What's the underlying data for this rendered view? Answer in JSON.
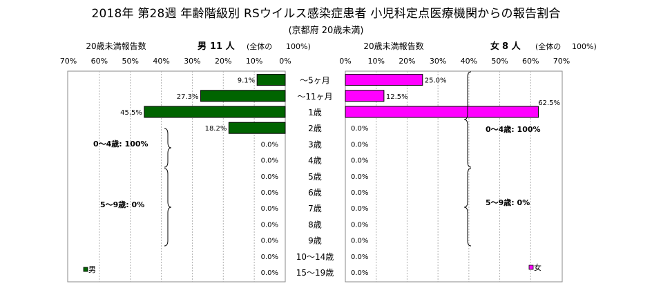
{
  "title": "2018年 第28週 年齢階級別 RSウイルス感染症患者 小児科定点医療機関からの報告割合",
  "subtitle": "(京都府 20歳未満)",
  "colors": {
    "male": "#006400",
    "female": "#ff00ff",
    "border": "#000000",
    "grid": "#b0b0b0"
  },
  "chart_data": [
    {
      "type": "bar",
      "orientation": "horizontal",
      "direction": "right-to-left",
      "header_left": "20歳未満報告数",
      "header_gender": "男",
      "header_count": "11 人",
      "header_total": "(全体の",
      "header_total_pct": "100%)",
      "legend": "男",
      "xlim": [
        0,
        70
      ],
      "ticks": [
        "0%",
        "10%",
        "20%",
        "30%",
        "40%",
        "50%",
        "60%",
        "70%"
      ],
      "categories": [
        "～5ヶ月",
        "～11ヶ月",
        "1歳",
        "2歳",
        "3歳",
        "4歳",
        "5歳",
        "6歳",
        "7歳",
        "8歳",
        "9歳",
        "10～14歳",
        "15～19歳"
      ],
      "values": [
        9.1,
        27.3,
        45.5,
        18.2,
        0.0,
        0.0,
        0.0,
        0.0,
        0.0,
        0.0,
        0.0,
        0.0,
        0.0
      ],
      "labels": [
        "9.1%",
        "27.3%",
        "45.5%",
        "18.2%",
        "0.0%",
        "0.0%",
        "0.0%",
        "0.0%",
        "0.0%",
        "0.0%",
        "0.0%",
        "0.0%",
        "0.0%"
      ],
      "annotations": [
        "0～4歳: 100%",
        "5～9歳: 0%"
      ]
    },
    {
      "type": "bar",
      "orientation": "horizontal",
      "direction": "left-to-right",
      "header_left": "20歳未満報告数",
      "header_gender": "女",
      "header_count": "8 人",
      "header_total": "(全体の",
      "header_total_pct": "100%)",
      "legend": "女",
      "xlim": [
        0,
        70
      ],
      "ticks": [
        "0%",
        "10%",
        "20%",
        "30%",
        "40%",
        "50%",
        "60%",
        "70%"
      ],
      "categories": [
        "～5ヶ月",
        "～11ヶ月",
        "1歳",
        "2歳",
        "3歳",
        "4歳",
        "5歳",
        "6歳",
        "7歳",
        "8歳",
        "9歳",
        "10～14歳",
        "15～19歳"
      ],
      "values": [
        25.0,
        12.5,
        62.5,
        0.0,
        0.0,
        0.0,
        0.0,
        0.0,
        0.0,
        0.0,
        0.0,
        0.0,
        0.0
      ],
      "labels": [
        "25.0%",
        "12.5%",
        "62.5%",
        "0.0%",
        "0.0%",
        "0.0%",
        "0.0%",
        "0.0%",
        "0.0%",
        "0.0%",
        "0.0%",
        "0.0%",
        "0.0%"
      ],
      "annotations": [
        "0～4歳: 100%",
        "5～9歳: 0%"
      ]
    }
  ]
}
